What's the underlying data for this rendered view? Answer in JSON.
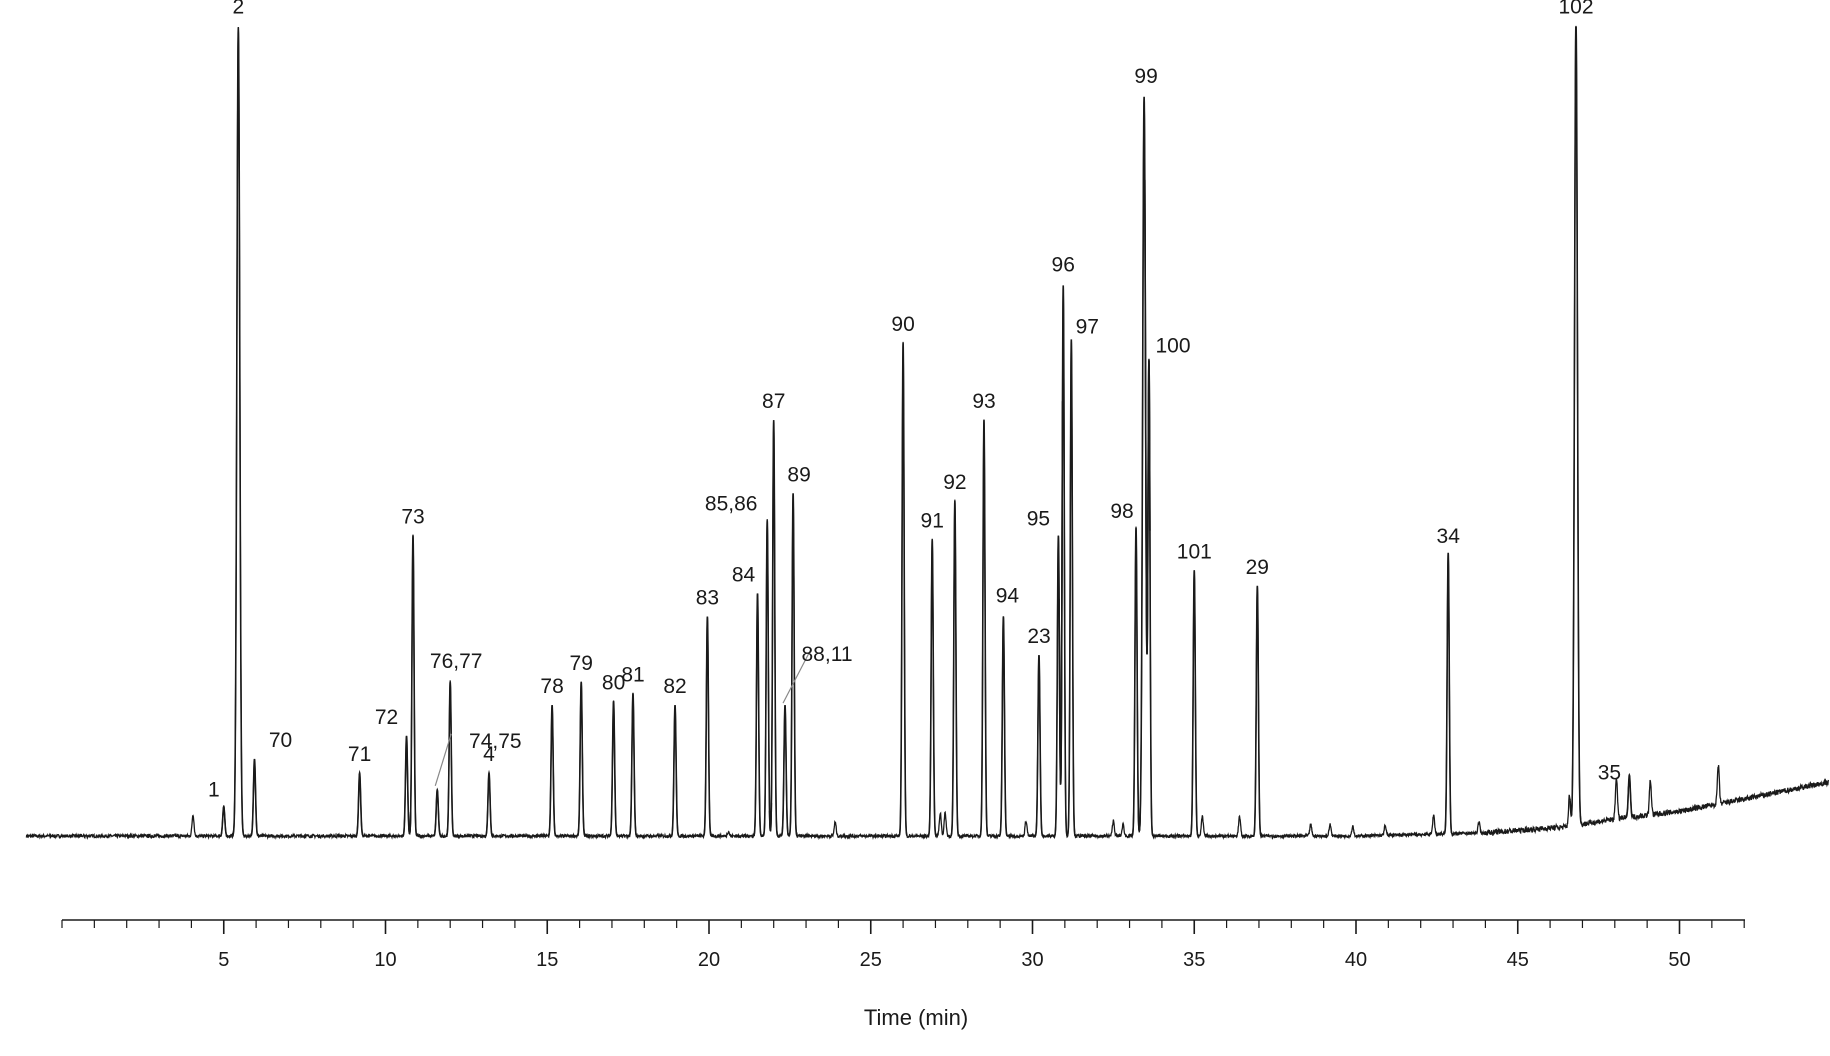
{
  "chart_data": {
    "type": "line",
    "title": "",
    "xlabel": "Time (min)",
    "ylabel": "",
    "xlim": [
      0,
      52.5
    ],
    "ylim": [
      0,
      1.05
    ],
    "x_ticks": [
      5,
      10,
      15,
      20,
      25,
      30,
      35,
      40,
      45,
      50
    ],
    "minor_tick_step": 1,
    "grid": false,
    "legend": "none",
    "colors": {
      "trace": "#1a1a1a",
      "axis": "#1a1a1a",
      "leader": "#888888"
    },
    "baseline": [
      [
        0,
        0.0
      ],
      [
        10,
        0.0
      ],
      [
        20,
        0.0
      ],
      [
        30,
        0.0
      ],
      [
        40,
        0.0
      ],
      [
        44,
        0.004
      ],
      [
        46.5,
        0.012
      ],
      [
        48,
        0.022
      ],
      [
        50,
        0.032
      ],
      [
        52,
        0.048
      ],
      [
        54.6,
        0.07
      ]
    ],
    "peaks": [
      {
        "label": "1",
        "x": 5.0,
        "y": 0.038
      },
      {
        "label": "2",
        "x": 5.45,
        "y": 1.05
      },
      {
        "label": "70",
        "x": 5.95,
        "y": 0.1
      },
      {
        "label": "71",
        "x": 9.2,
        "y": 0.082
      },
      {
        "label": "72",
        "x": 10.65,
        "y": 0.13
      },
      {
        "label": "73",
        "x": 10.85,
        "y": 0.39
      },
      {
        "label": "74,75",
        "x": 11.6,
        "y": 0.06
      },
      {
        "label": "76,77",
        "x": 12.0,
        "y": 0.2
      },
      {
        "label": "4",
        "x": 13.2,
        "y": 0.082
      },
      {
        "label": "78",
        "x": 15.15,
        "y": 0.17
      },
      {
        "label": "79",
        "x": 16.05,
        "y": 0.2
      },
      {
        "label": "80",
        "x": 17.05,
        "y": 0.175
      },
      {
        "label": "81",
        "x": 17.65,
        "y": 0.185
      },
      {
        "label": "82",
        "x": 18.95,
        "y": 0.17
      },
      {
        "label": "83",
        "x": 19.95,
        "y": 0.285
      },
      {
        "label": "84",
        "x": 21.5,
        "y": 0.315
      },
      {
        "label": "85,86",
        "x": 21.8,
        "y": 0.41
      },
      {
        "label": "87",
        "x": 22.0,
        "y": 0.54
      },
      {
        "label": "88,11",
        "x": 22.35,
        "y": 0.17
      },
      {
        "label": "89",
        "x": 22.6,
        "y": 0.445
      },
      {
        "label": "90",
        "x": 26.0,
        "y": 0.64
      },
      {
        "label": "91",
        "x": 26.9,
        "y": 0.385
      },
      {
        "label": "92",
        "x": 27.6,
        "y": 0.435
      },
      {
        "label": "93",
        "x": 28.5,
        "y": 0.54
      },
      {
        "label": "94",
        "x": 29.1,
        "y": 0.285
      },
      {
        "label": "23",
        "x": 30.2,
        "y": 0.235
      },
      {
        "label": "95",
        "x": 30.8,
        "y": 0.39
      },
      {
        "label": "96",
        "x": 30.95,
        "y": 0.715
      },
      {
        "label": "97",
        "x": 31.2,
        "y": 0.645
      },
      {
        "label": "98",
        "x": 33.2,
        "y": 0.4
      },
      {
        "label": "99",
        "x": 33.45,
        "y": 0.96
      },
      {
        "label": "100",
        "x": 33.6,
        "y": 0.615
      },
      {
        "label": "101",
        "x": 35.0,
        "y": 0.345
      },
      {
        "label": "29",
        "x": 36.95,
        "y": 0.325
      },
      {
        "label": "34",
        "x": 42.85,
        "y": 0.365
      },
      {
        "label": "102",
        "x": 46.8,
        "y": 1.05
      },
      {
        "label": "35",
        "x": 48.45,
        "y": 0.055
      }
    ],
    "minor_peaks": [
      {
        "x": 4.05,
        "y": 0.028
      },
      {
        "x": 20.6,
        "y": 0.006
      },
      {
        "x": 23.9,
        "y": 0.018
      },
      {
        "x": 27.15,
        "y": 0.03
      },
      {
        "x": 27.3,
        "y": 0.03
      },
      {
        "x": 29.8,
        "y": 0.02
      },
      {
        "x": 32.5,
        "y": 0.02
      },
      {
        "x": 32.8,
        "y": 0.015
      },
      {
        "x": 35.25,
        "y": 0.025
      },
      {
        "x": 36.4,
        "y": 0.025
      },
      {
        "x": 38.6,
        "y": 0.015
      },
      {
        "x": 39.2,
        "y": 0.015
      },
      {
        "x": 39.9,
        "y": 0.013
      },
      {
        "x": 40.9,
        "y": 0.012
      },
      {
        "x": 42.4,
        "y": 0.025
      },
      {
        "x": 43.8,
        "y": 0.014
      },
      {
        "x": 46.6,
        "y": 0.04
      },
      {
        "x": 48.05,
        "y": 0.055
      },
      {
        "x": 49.1,
        "y": 0.045
      },
      {
        "x": 51.2,
        "y": 0.05
      }
    ]
  }
}
